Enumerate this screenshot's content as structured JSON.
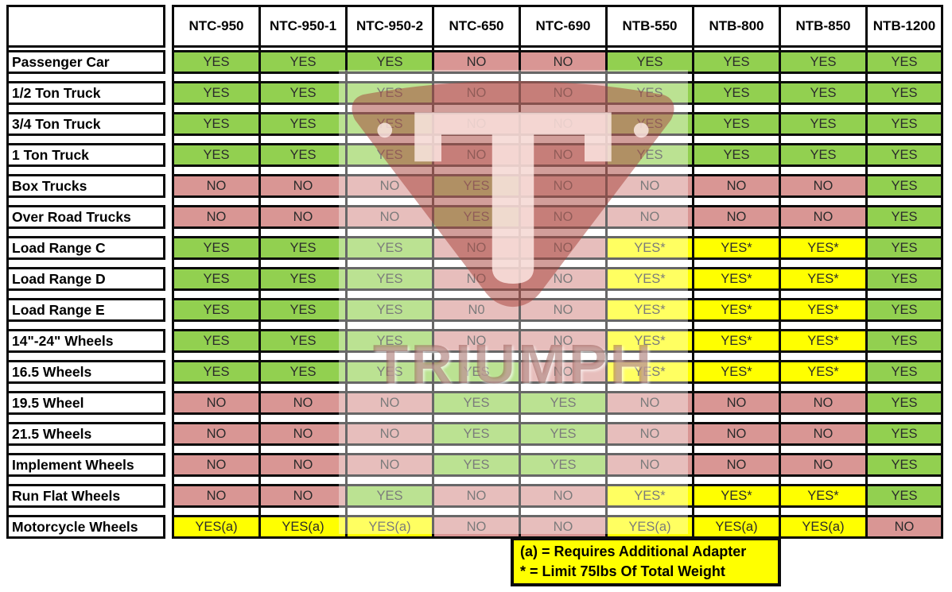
{
  "chart_data": {
    "type": "table",
    "columns": [
      "NTC-950",
      "NTC-950-1",
      "NTC-950-2",
      "NTC-650",
      "NTC-690",
      "NTB-550",
      "NTB-800",
      "NTB-850",
      "NTB-1200"
    ],
    "rows": [
      {
        "label": "Passenger Car",
        "values": [
          "YES",
          "YES",
          "YES",
          "NO",
          "NO",
          "YES",
          "YES",
          "YES",
          "YES"
        ]
      },
      {
        "label": "1/2 Ton Truck",
        "values": [
          "YES",
          "YES",
          "YES",
          "NO",
          "NO",
          "YES",
          "YES",
          "YES",
          "YES"
        ]
      },
      {
        "label": "3/4 Ton Truck",
        "values": [
          "YES",
          "YES",
          "YES",
          "NO",
          "NO",
          "YES",
          "YES",
          "YES",
          "YES"
        ]
      },
      {
        "label": "1 Ton Truck",
        "values": [
          "YES",
          "YES",
          "YES",
          "NO",
          "NO",
          "YES",
          "YES",
          "YES",
          "YES"
        ]
      },
      {
        "label": "Box Trucks",
        "values": [
          "NO",
          "NO",
          "NO",
          "YES",
          "NO",
          "NO",
          "NO",
          "NO",
          "YES"
        ]
      },
      {
        "label": "Over Road Trucks",
        "values": [
          "NO",
          "NO",
          "NO",
          "YES",
          "NO",
          "NO",
          "NO",
          "NO",
          "YES"
        ]
      },
      {
        "label": "Load Range C",
        "values": [
          "YES",
          "YES",
          "YES",
          "NO",
          "NO",
          "YES*",
          "YES*",
          "YES*",
          "YES"
        ]
      },
      {
        "label": "Load Range D",
        "values": [
          "YES",
          "YES",
          "YES",
          "NO",
          "NO",
          "YES*",
          "YES*",
          "YES*",
          "YES"
        ]
      },
      {
        "label": "Load Range E",
        "values": [
          "YES",
          "YES",
          "YES",
          "N0",
          "NO",
          "YES*",
          "YES*",
          "YES*",
          "YES"
        ]
      },
      {
        "label": "14\"-24\" Wheels",
        "values": [
          "YES",
          "YES",
          "YES",
          "NO",
          "NO",
          "YES*",
          "YES*",
          "YES*",
          "YES"
        ]
      },
      {
        "label": "16.5 Wheels",
        "values": [
          "YES",
          "YES",
          "YES",
          "YES",
          "NO",
          "YES*",
          "YES*",
          "YES*",
          "YES"
        ]
      },
      {
        "label": "19.5 Wheel",
        "values": [
          "NO",
          "NO",
          "NO",
          "YES",
          "YES",
          "NO",
          "NO",
          "NO",
          "YES"
        ]
      },
      {
        "label": "21.5 Wheels",
        "values": [
          "NO",
          "NO",
          "NO",
          "YES",
          "YES",
          "NO",
          "NO",
          "NO",
          "YES"
        ]
      },
      {
        "label": "Implement Wheels",
        "values": [
          "NO",
          "NO",
          "NO",
          "YES",
          "YES",
          "NO",
          "NO",
          "NO",
          "YES"
        ]
      },
      {
        "label": "Run Flat Wheels",
        "values": [
          "NO",
          "NO",
          "YES",
          "NO",
          "NO",
          "YES*",
          "YES*",
          "YES*",
          "YES"
        ]
      },
      {
        "label": "Motorcycle Wheels",
        "values": [
          "YES(a)",
          "YES(a)",
          "YES(a)",
          "NO",
          "NO",
          "YES(a)",
          "YES(a)",
          "YES(a)",
          "NO"
        ]
      }
    ],
    "legend": [
      "(a) = Requires Additional Adapter",
      "* = Limit 75lbs Of Total Weight"
    ],
    "cell_colors": {
      "yes": "#92D050",
      "no": "#D99694",
      "conditional": "#FFFF00",
      "border": "#000000"
    }
  },
  "watermark": {
    "text": "TRIUMPH"
  }
}
